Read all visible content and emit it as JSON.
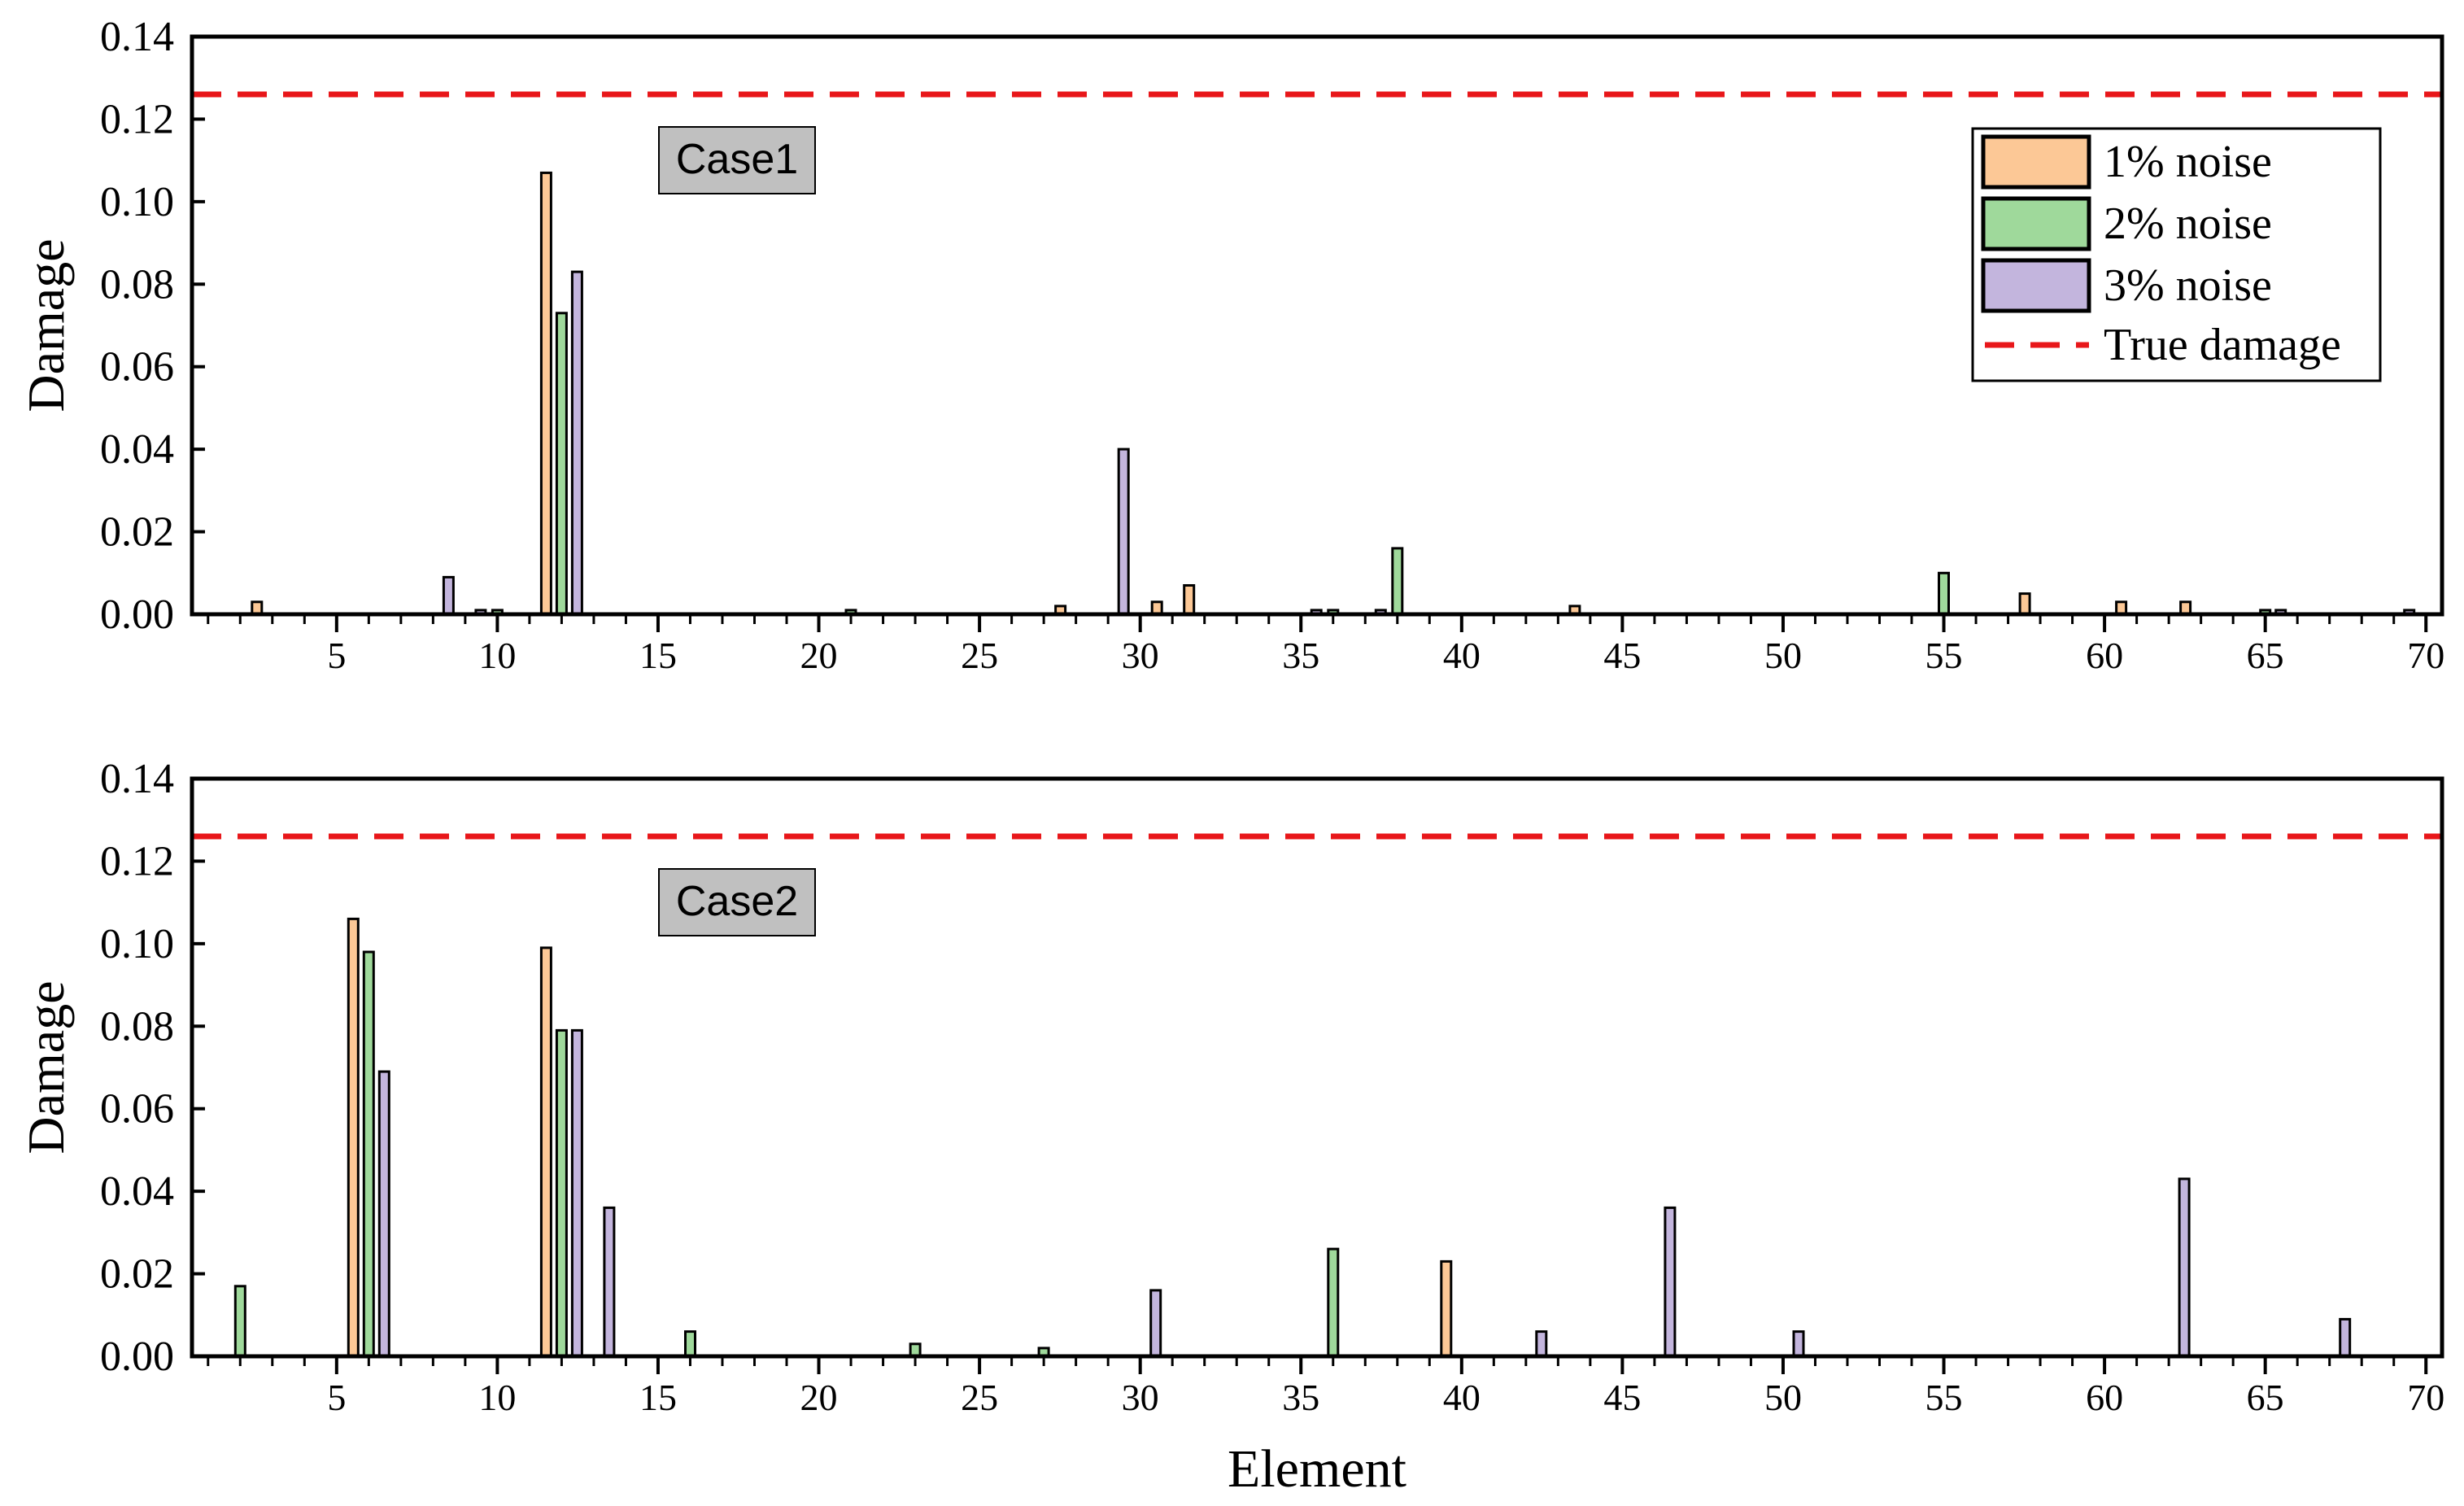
{
  "chart_data": [
    {
      "type": "bar",
      "annotation": "Case1",
      "xlabel": "",
      "ylabel": "Damage",
      "xlim": [
        0.5,
        70.5
      ],
      "ylim": [
        0,
        0.14
      ],
      "xticks": [
        5,
        10,
        15,
        20,
        25,
        30,
        35,
        40,
        45,
        50,
        55,
        60,
        65,
        70
      ],
      "yticks": [
        0.0,
        0.02,
        0.04,
        0.06,
        0.08,
        0.1,
        0.12,
        0.14
      ],
      "true_damage": 0.126,
      "legend_position": "top-right",
      "series": [
        {
          "name": "1% noise",
          "color": "#fcc896",
          "points": [
            [
              3,
              0.003
            ],
            [
              12,
              0.107
            ],
            [
              28,
              0.002
            ],
            [
              31,
              0.003
            ],
            [
              32,
              0.007
            ],
            [
              44,
              0.002
            ],
            [
              58,
              0.005
            ],
            [
              61,
              0.003
            ],
            [
              63,
              0.003
            ]
          ]
        },
        {
          "name": "2% noise",
          "color": "#9fd99b",
          "points": [
            [
              10,
              0.001
            ],
            [
              12,
              0.073
            ],
            [
              21,
              0.001
            ],
            [
              36,
              0.001
            ],
            [
              38,
              0.016
            ],
            [
              55,
              0.01
            ],
            [
              65,
              0.001
            ]
          ]
        },
        {
          "name": "3% noise",
          "color": "#c3b5dd",
          "points": [
            [
              8,
              0.009
            ],
            [
              9,
              0.001
            ],
            [
              12,
              0.083
            ],
            [
              29,
              0.04
            ],
            [
              35,
              0.001
            ],
            [
              37,
              0.001
            ],
            [
              65,
              0.001
            ],
            [
              69,
              0.001
            ]
          ]
        }
      ]
    },
    {
      "type": "bar",
      "annotation": "Case2",
      "xlabel": "Element",
      "ylabel": "Damage",
      "xlim": [
        0.5,
        70.5
      ],
      "ylim": [
        0,
        0.14
      ],
      "xticks": [
        5,
        10,
        15,
        20,
        25,
        30,
        35,
        40,
        45,
        50,
        55,
        60,
        65,
        70
      ],
      "yticks": [
        0.0,
        0.02,
        0.04,
        0.06,
        0.08,
        0.1,
        0.12,
        0.14
      ],
      "true_damage": 0.126,
      "series": [
        {
          "name": "1% noise",
          "color": "#fcc896",
          "points": [
            [
              6,
              0.106
            ],
            [
              12,
              0.099
            ],
            [
              40,
              0.023
            ]
          ]
        },
        {
          "name": "2% noise",
          "color": "#9fd99b",
          "points": [
            [
              2,
              0.017
            ],
            [
              6,
              0.098
            ],
            [
              12,
              0.079
            ],
            [
              16,
              0.006
            ],
            [
              23,
              0.003
            ],
            [
              27,
              0.002
            ],
            [
              36,
              0.026
            ]
          ]
        },
        {
          "name": "3% noise",
          "color": "#c3b5dd",
          "points": [
            [
              6,
              0.069
            ],
            [
              12,
              0.079
            ],
            [
              13,
              0.036
            ],
            [
              30,
              0.016
            ],
            [
              42,
              0.006
            ],
            [
              46,
              0.036
            ],
            [
              50,
              0.006
            ],
            [
              62,
              0.043
            ],
            [
              67,
              0.009
            ]
          ]
        }
      ]
    }
  ],
  "legend": {
    "items": [
      {
        "label": "1% noise",
        "color": "#fcc896"
      },
      {
        "label": "2% noise",
        "color": "#9fd99b"
      },
      {
        "label": "3% noise",
        "color": "#c3b5dd"
      },
      {
        "label": "True damage",
        "color": "#e8171a"
      }
    ]
  }
}
